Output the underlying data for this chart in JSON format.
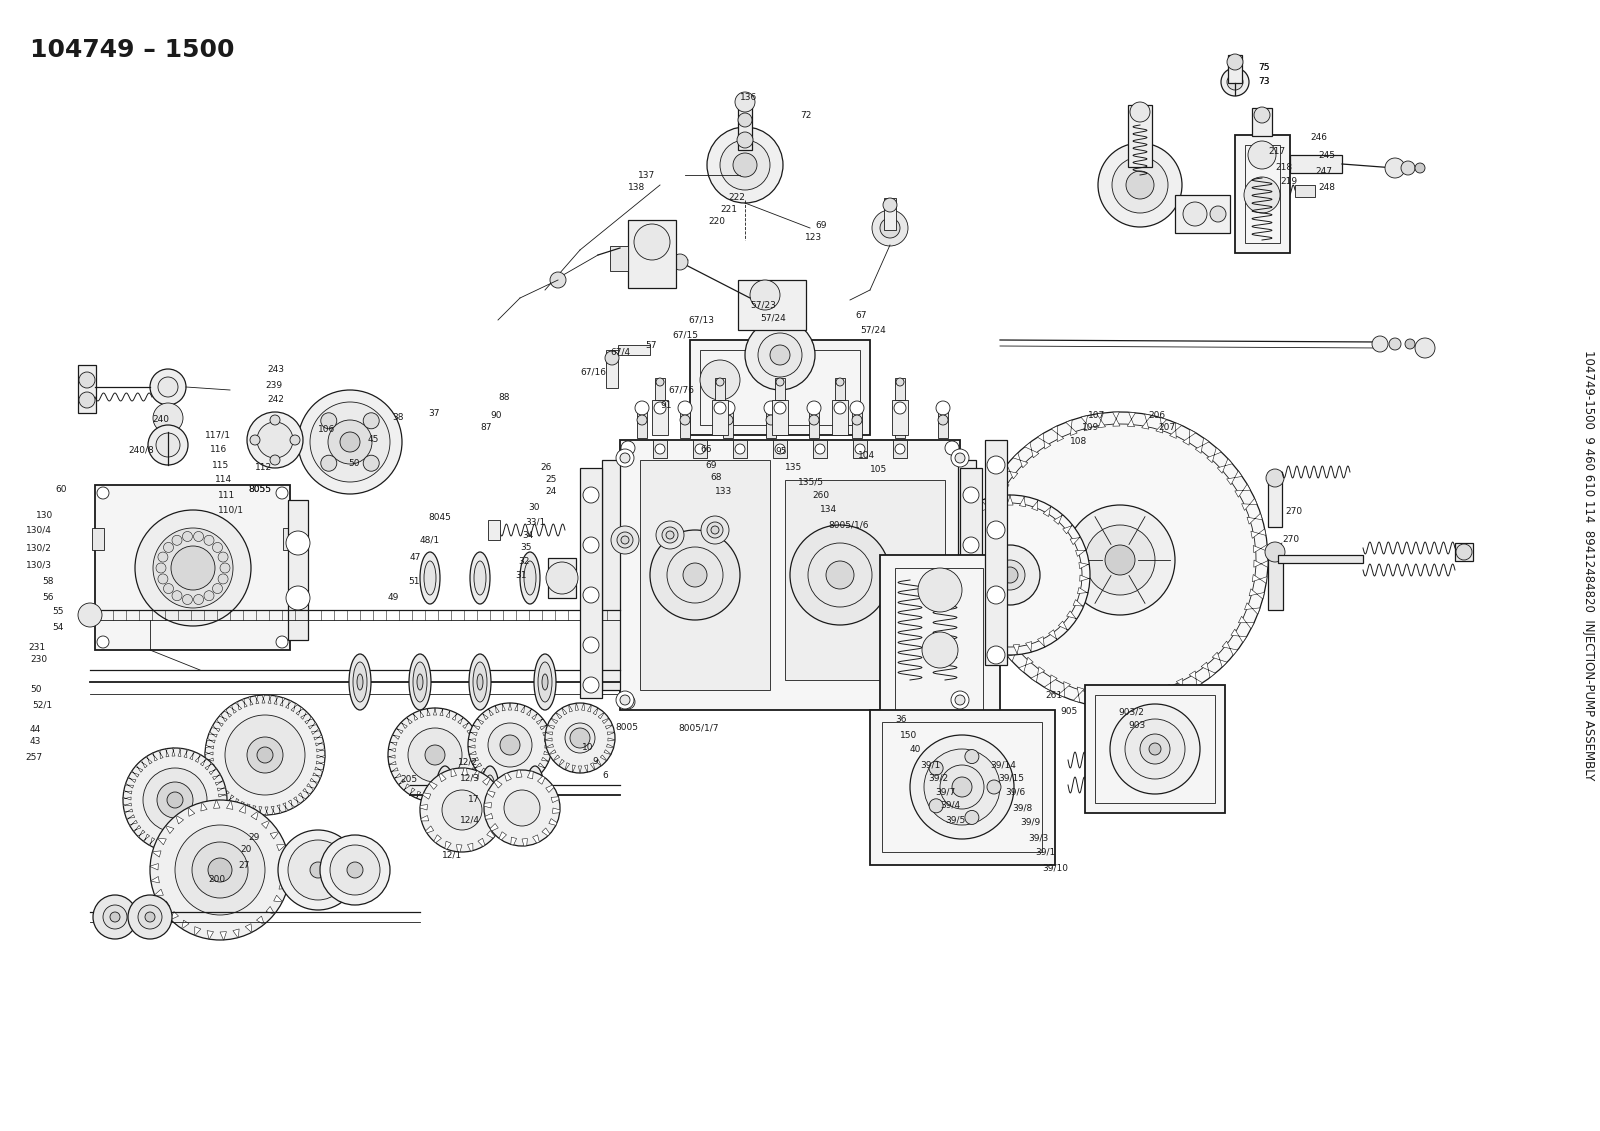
{
  "title_top_left": "104749 – 1500",
  "side_text_line1": "104749-1500  9 460 610 114  89412484820  INJECTION-PUMP ASSEMBLY",
  "bg_color": "#ffffff",
  "line_color": "#1a1a1a",
  "title_fontsize": 20,
  "side_text_fontsize": 8.5,
  "fig_width": 16.0,
  "fig_height": 11.31,
  "dpi": 100,
  "lw_thin": 0.6,
  "lw_med": 0.9,
  "lw_thick": 1.3
}
